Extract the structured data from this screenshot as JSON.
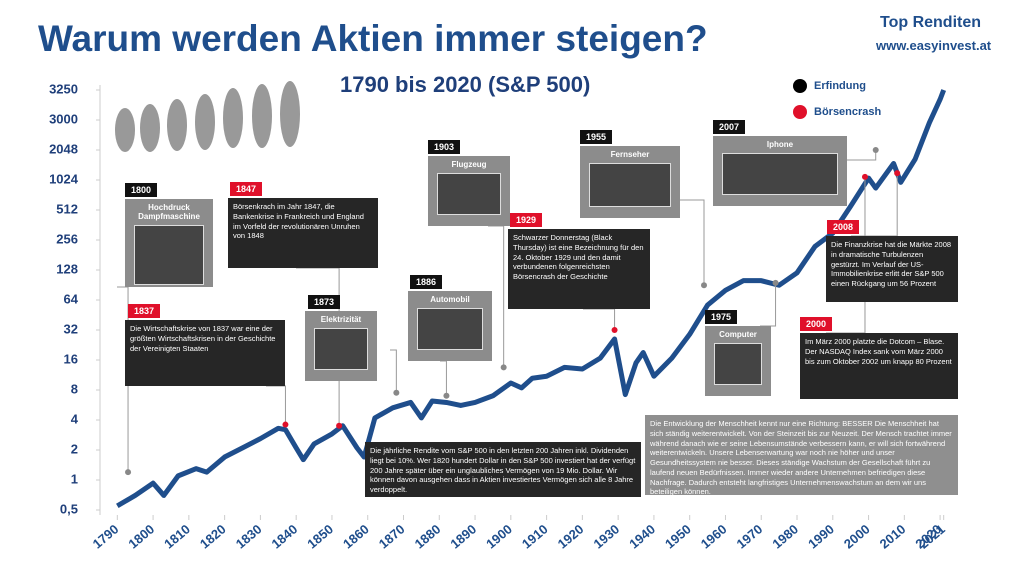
{
  "chart_data": {
    "type": "line",
    "title": "Warum werden Aktien immer steigen?",
    "subtitle": "1790 bis 2020 (S&P 500)",
    "brand": "Top Renditen",
    "website": "www.easyinvest.at",
    "x": [
      1790,
      1795,
      1800,
      1803,
      1807,
      1812,
      1815,
      1820,
      1825,
      1830,
      1835,
      1837,
      1840,
      1842,
      1845,
      1850,
      1853,
      1857,
      1859,
      1862,
      1867,
      1872,
      1875,
      1878,
      1882,
      1886,
      1890,
      1895,
      1900,
      1903,
      1906,
      1910,
      1915,
      1920,
      1925,
      1929,
      1932,
      1935,
      1937,
      1940,
      1945,
      1950,
      1955,
      1960,
      1965,
      1970,
      1975,
      1980,
      1985,
      1990,
      1995,
      2000,
      2002,
      2007,
      2009,
      2013,
      2017,
      2020,
      2021
    ],
    "series": [
      {
        "color": "#1f4e8c",
        "values": [
          0.55,
          0.7,
          0.93,
          0.7,
          1.1,
          1.3,
          1.2,
          1.7,
          2.1,
          2.6,
          3.3,
          3.2,
          2.1,
          1.6,
          2.3,
          2.9,
          3.5,
          2.1,
          1.7,
          4.2,
          5.3,
          6,
          4.2,
          6.2,
          6,
          5.6,
          6,
          7,
          9.4,
          8.4,
          10.5,
          11,
          13.5,
          13,
          16.7,
          26,
          7.2,
          15,
          19,
          11,
          16.7,
          29,
          57,
          80,
          100,
          100,
          90,
          120,
          220,
          300,
          560,
          1070,
          850,
          1500,
          970,
          1650,
          2900,
          3170,
          3250
        ]
      }
    ],
    "xlim": [
      1786,
      2025
    ],
    "xticks": [
      1790,
      1800,
      1810,
      1820,
      1830,
      1840,
      1850,
      1860,
      1870,
      1880,
      1890,
      1900,
      1910,
      1920,
      1930,
      1940,
      1950,
      1960,
      1970,
      1980,
      1990,
      2000,
      2010,
      2020,
      2021
    ],
    "ylim": [
      0.5,
      3250
    ],
    "yticks": [
      {
        "value": 0.5,
        "label": "0,5"
      },
      1,
      2,
      4,
      8,
      16,
      32,
      64,
      128,
      256,
      512,
      1024,
      2048,
      3000,
      3250
    ],
    "log_scale": true,
    "grid": false,
    "legend": [
      {
        "label": "Erfindung",
        "color": "#000000"
      },
      {
        "label": "Börsencrash",
        "color": "#e0102a"
      }
    ],
    "events": [
      {
        "kind": 0,
        "year": "1800",
        "title": "Hochdruck Dampfmaschine",
        "x": 1793,
        "value": 1.2
      },
      {
        "kind": 1,
        "year": "1837",
        "text": "Die Wirtschaftskrise von 1837 war eine der größten Wirtschaftskrisen in der Geschichte der Vereinigten Staaten",
        "x": 1837,
        "value": 3.6
      },
      {
        "kind": 1,
        "year": "1847",
        "text": "Börsenkrach im Jahr 1847, die Bankenkrise in Frankreich und England im Vorfeld der revolutionären Unruhen von 1848",
        "x": 1852,
        "value": 3.5
      },
      {
        "kind": 0,
        "year": "1873",
        "title": "Elektrizität",
        "x": 1868,
        "value": 7.5
      },
      {
        "kind": 0,
        "year": "1886",
        "title": "Automobil",
        "x": 1882,
        "value": 7
      },
      {
        "kind": 0,
        "year": "1903",
        "title": "Flugzeug",
        "x": 1898,
        "value": 13.5
      },
      {
        "kind": 1,
        "year": "1929",
        "text": "Schwarzer Donnerstag (Black Thursday) ist eine Bezeichnung für den 24. Oktober 1929 und den damit verbundenen folgenreichsten Börsencrash der Geschichte",
        "x": 1929,
        "value": 32
      },
      {
        "kind": 0,
        "year": "1955",
        "title": "Fernseher",
        "x": 1954,
        "value": 90
      },
      {
        "kind": 0,
        "year": "1975",
        "title": "Computer",
        "x": 1974,
        "value": 95
      },
      {
        "kind": 0,
        "year": "2007",
        "title": "Iphone",
        "x": 2002,
        "value": 2048
      },
      {
        "kind": 1,
        "year": "2008",
        "text": "Die Finanzkrise hat die Märkte 2008 in dramatische Turbulenzen gestürzt. Im Verlauf der US-Immobilienkrise erlitt der S&P 500 einen Rückgang um  56 Prozent",
        "x": 2008,
        "value": 1200
      },
      {
        "kind": 1,
        "year": "2000",
        "text": "Im März 2000 platzte die Dotcom – Blase. Der NASDAQ Index sank vom März 2000  bis zum Oktober 2002 um knapp 80 Prozent",
        "x": 1999,
        "value": 1100
      }
    ],
    "notes": [
      "Die jährliche Rendite vom S&P 500 in den letzten 200 Jahren inkl. Dividenden liegt bei 10%. Wer 1820 hundert Dollar in den S&P 500 investiert hat der verfügt 200 Jahre später über ein unglaubliches Vermögen von 19 Mio. Dollar. Wir können davon ausgehen dass in Aktien investiertes Vermögen sich alle 8 Jahre verdoppelt.",
      "Die Entwicklung der Menschheit kennt nur eine Richtung: BESSER Die Menschheit hat sich ständig weiterentwickelt. Von der Steinzeit bis zur Neuzeit. Der Mensch trachtet immer während danach wie er seine Lebensumstände verbessern kann, er will sich fortwährend weiterentwickeln. Unsere Lebenserwartung war noch nie höher und unser Gesundheitssystem nie besser. Dieses ständige Wachstum der Gesellschaft führt zu laufend neuen Bedürfnissen. Immer wieder andere Unternehmen befriedigen diese Nachfrage. Dadurch entsteht langfristiges Unternehmenswachstum an dem wir uns beteiligen können."
    ]
  }
}
